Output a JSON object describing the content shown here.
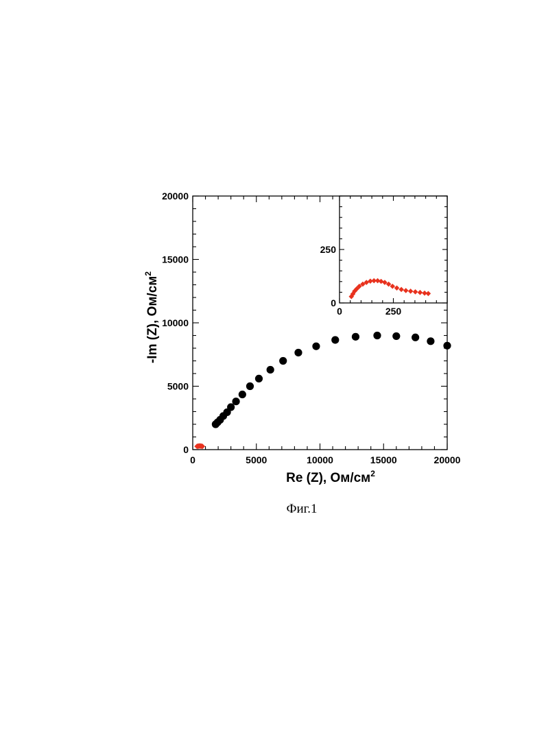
{
  "figure": {
    "caption": "Фиг.1"
  },
  "colors": {
    "main_marker": "#000000",
    "inset_marker": "#e8321e"
  },
  "chart_data": [
    {
      "type": "scatter",
      "xlabel": "Re (Z), Ом/см",
      "xlabel_sup": "2",
      "ylabel": "-Im (Z), Ом/см",
      "ylabel_sup": "2",
      "xlim": [
        0,
        20000
      ],
      "ylim": [
        0,
        20000
      ],
      "xticks": [
        "0",
        "5000",
        "10000",
        "15000",
        "20000"
      ],
      "yticks": [
        "0",
        "5000",
        "10000",
        "15000",
        "20000"
      ],
      "grid": false,
      "series": [
        {
          "marker": "circle",
          "x": [
            1800,
            1950,
            2150,
            2400,
            2700,
            3000,
            3400,
            3900,
            4500,
            5200,
            6100,
            7100,
            8300,
            9700,
            11200,
            12800,
            14500,
            16000,
            17500,
            18700,
            20000
          ],
          "y": [
            2000,
            2150,
            2350,
            2650,
            2950,
            3350,
            3800,
            4350,
            5000,
            5600,
            6300,
            7000,
            7650,
            8150,
            8650,
            8900,
            9000,
            8950,
            8850,
            8550,
            8200
          ]
        },
        {
          "marker": "diamond",
          "x": [
            350,
            450,
            550,
            650,
            750
          ],
          "y": [
            260,
            280,
            290,
            280,
            260
          ]
        }
      ]
    },
    {
      "type": "scatter",
      "inset": true,
      "xlim": [
        0,
        500
      ],
      "ylim": [
        0,
        500
      ],
      "xticks": [
        "0",
        "250"
      ],
      "yticks": [
        "0",
        "250"
      ],
      "grid": false,
      "series": [
        {
          "marker": "diamond",
          "x": [
            55,
            62,
            70,
            80,
            92,
            108,
            125,
            143,
            160,
            177,
            193,
            210,
            228,
            246,
            266,
            287,
            308,
            330,
            352,
            374,
            395,
            412
          ],
          "y": [
            30,
            42,
            55,
            66,
            78,
            88,
            96,
            102,
            104,
            104,
            101,
            96,
            88,
            78,
            70,
            63,
            58,
            55,
            52,
            49,
            46,
            44
          ]
        }
      ]
    }
  ]
}
